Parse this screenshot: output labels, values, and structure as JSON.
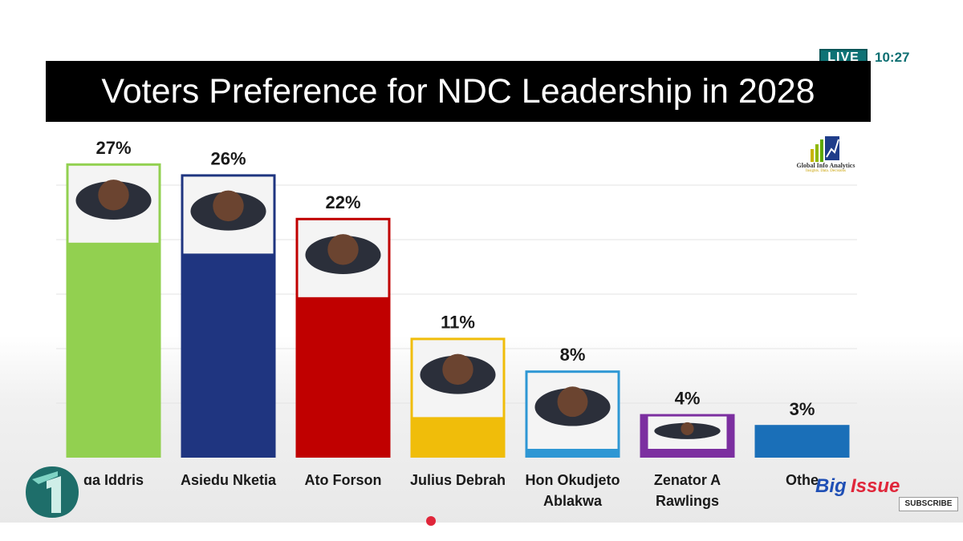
{
  "header": {
    "live_label": "LIVE",
    "time": "10:27",
    "title": "Voters Preference for NDC Leadership in 2028"
  },
  "source_logo": {
    "name": "Global Info Analytics",
    "tagline": "Insights. Data. Decisions"
  },
  "overlays": {
    "show_logo": "The Big Issue",
    "subscribe_label": "SUBSCRIBE",
    "channel_logo_icon": "channel-one-logo-icon"
  },
  "chart_data": {
    "type": "bar",
    "title": "Voters Preference for NDC Leadership in 2028",
    "ylim": [
      0,
      30
    ],
    "grid": true,
    "categories": [
      "ɑa Iddris",
      "Asiedu Nketia",
      "Ato Forson",
      "Julius Debrah",
      "Hon Okudjeto Ablakwa",
      "Zenator A Rawlings",
      "Othe"
    ],
    "values": [
      27,
      26,
      22,
      11,
      8,
      4,
      3
    ],
    "value_labels": [
      "27%",
      "26%",
      "22%",
      "11%",
      "8%",
      "4%",
      "3%"
    ],
    "colors": [
      "#92d050",
      "#1f3580",
      "#c00000",
      "#f0bd0a",
      "#2e97d4",
      "#7c2fa0",
      "#1a6fb8"
    ],
    "photo_icons": [
      "portrait-photo-icon",
      "portrait-photo-icon",
      "portrait-photo-icon",
      "portrait-photo-icon",
      "portrait-photo-icon",
      "portrait-photo-icon",
      ""
    ]
  }
}
